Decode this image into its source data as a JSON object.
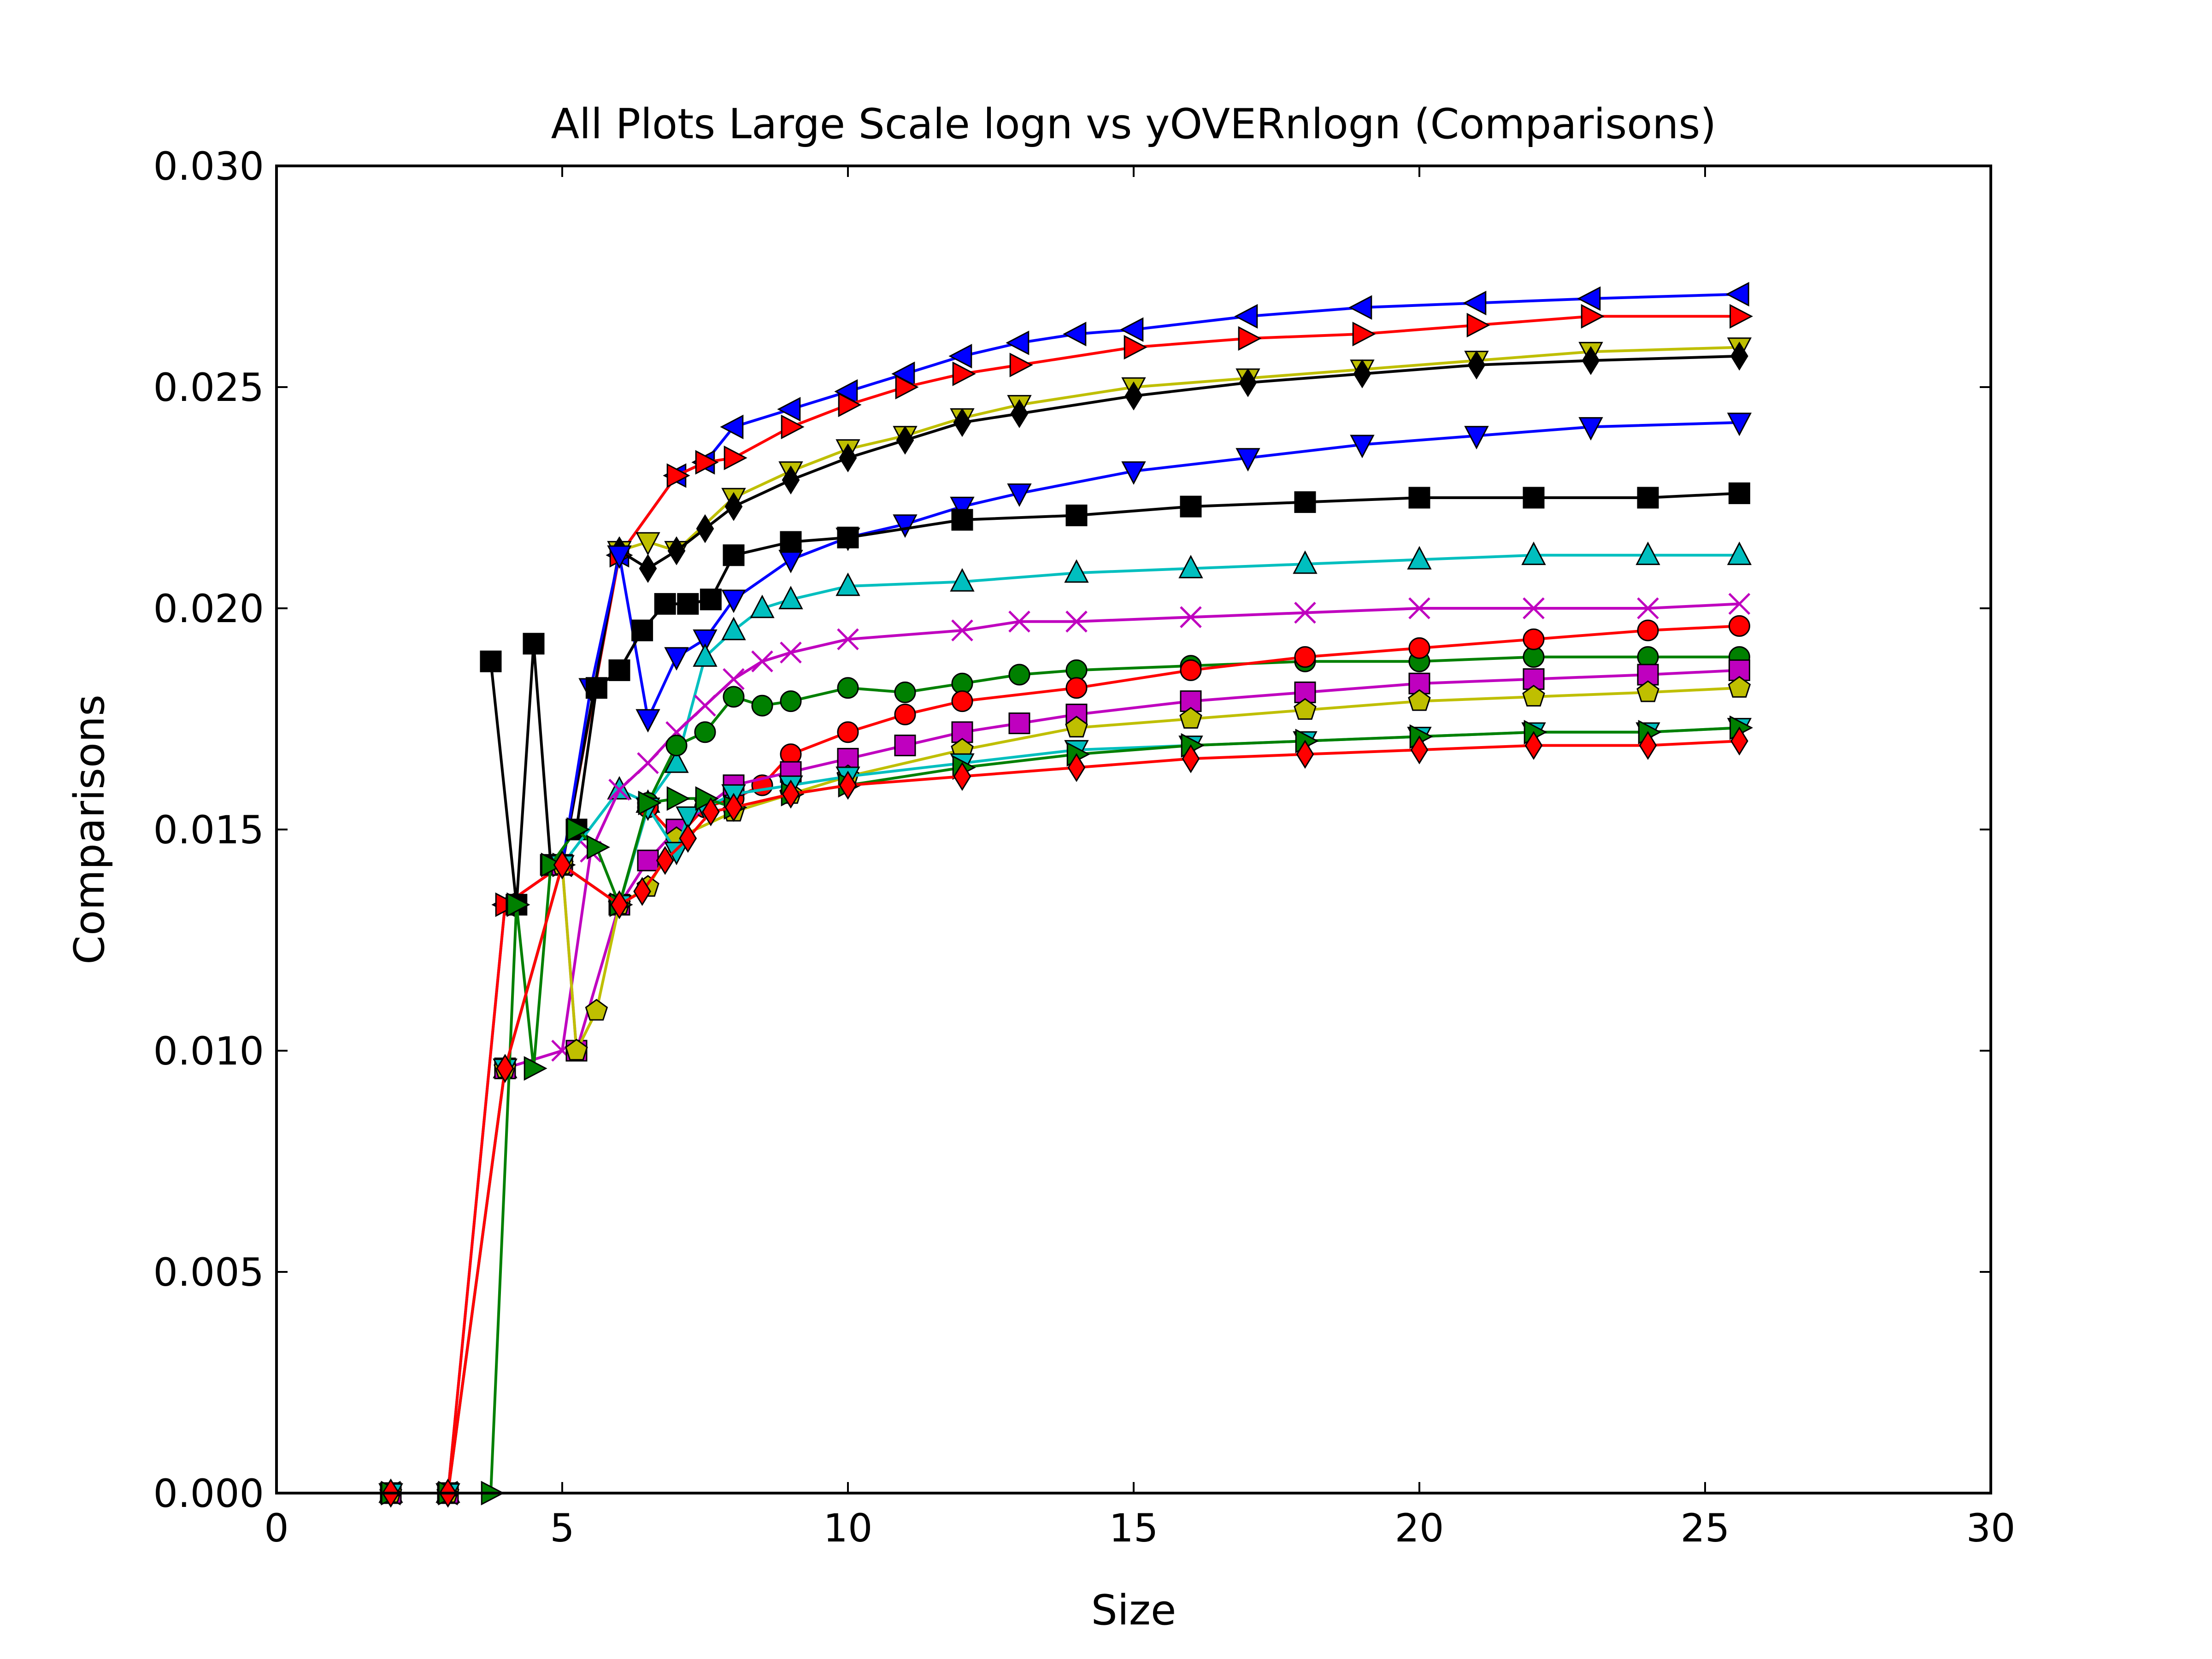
{
  "chart_data": {
    "type": "line",
    "title": "All Plots Large Scale logn vs yOVERnlogn (Comparisons)",
    "xlabel": "Size",
    "ylabel": "Comparisons",
    "xlim": [
      0,
      30
    ],
    "ylim": [
      0,
      0.03
    ],
    "xticks": [
      "0",
      "5",
      "10",
      "15",
      "20",
      "25",
      "30"
    ],
    "yticks": [
      "0.000",
      "0.005",
      "0.010",
      "0.015",
      "0.020",
      "0.025",
      "0.030"
    ],
    "grid": false,
    "legend": "none",
    "series": [
      {
        "color": "#0000ff",
        "marker": "triangle-left",
        "x": [
          2.0,
          3.0,
          4.0,
          5.0,
          6.0,
          7.0,
          7.5,
          8.0,
          9.0,
          10.0,
          11.0,
          12.0,
          13.0,
          14.0,
          15.0,
          17.0,
          19.0,
          21.0,
          23.0,
          25.6
        ],
        "y": [
          0.0,
          0.0,
          0.0133,
          0.0142,
          0.0212,
          0.023,
          0.0233,
          0.0241,
          0.0245,
          0.0249,
          0.0253,
          0.0257,
          0.026,
          0.0262,
          0.0263,
          0.0266,
          0.0268,
          0.0269,
          0.027,
          0.0271
        ]
      },
      {
        "color": "#ff0000",
        "marker": "triangle-right",
        "x": [
          2.0,
          3.0,
          4.0,
          5.0,
          6.0,
          7.0,
          7.5,
          8.0,
          9.0,
          10.0,
          11.0,
          12.0,
          13.0,
          15.0,
          17.0,
          19.0,
          21.0,
          23.0,
          25.6
        ],
        "y": [
          0.0,
          0.0,
          0.0133,
          0.0142,
          0.0212,
          0.023,
          0.0233,
          0.0234,
          0.0241,
          0.0246,
          0.025,
          0.0253,
          0.0255,
          0.0259,
          0.0261,
          0.0262,
          0.0264,
          0.0266,
          0.0266
        ]
      },
      {
        "color": "#bfbf00",
        "marker": "triangle-down",
        "x": [
          2.0,
          3.0,
          4.0,
          5.0,
          6.0,
          6.5,
          7.0,
          8.0,
          9.0,
          10.0,
          11.0,
          12.0,
          13.0,
          15.0,
          17.0,
          19.0,
          21.0,
          23.0,
          25.6
        ],
        "y": [
          0.0,
          0.0,
          0.0096,
          0.0142,
          0.0213,
          0.0215,
          0.0213,
          0.0225,
          0.0231,
          0.0236,
          0.0239,
          0.0243,
          0.0246,
          0.025,
          0.0252,
          0.0254,
          0.0256,
          0.0258,
          0.0259
        ]
      },
      {
        "color": "#000000",
        "marker": "diamond",
        "x": [
          2.0,
          3.0,
          4.0,
          5.0,
          6.0,
          6.5,
          7.0,
          7.5,
          8.0,
          9.0,
          10.0,
          11.0,
          12.0,
          13.0,
          15.0,
          17.0,
          19.0,
          21.0,
          23.0,
          25.6
        ],
        "y": [
          0.0,
          0.0,
          0.0096,
          0.0142,
          0.0213,
          0.0209,
          0.0213,
          0.0218,
          0.0223,
          0.0229,
          0.0234,
          0.0238,
          0.0242,
          0.0244,
          0.0248,
          0.0251,
          0.0253,
          0.0255,
          0.0256,
          0.0257
        ]
      },
      {
        "color": "#0000ff",
        "marker": "triangle-down",
        "x": [
          2.0,
          3.0,
          4.0,
          5.0,
          5.5,
          6.0,
          6.5,
          7.0,
          7.5,
          8.0,
          9.0,
          10.0,
          11.0,
          12.0,
          13.0,
          15.0,
          17.0,
          19.0,
          21.0,
          23.0,
          25.6
        ],
        "y": [
          0.0,
          0.0,
          0.0096,
          0.0142,
          0.0182,
          0.0212,
          0.0175,
          0.0189,
          0.0193,
          0.0202,
          0.0211,
          0.0216,
          0.0219,
          0.0223,
          0.0226,
          0.0231,
          0.0234,
          0.0237,
          0.0239,
          0.0241,
          0.0242
        ]
      },
      {
        "color": "#000000",
        "marker": "square",
        "x": [
          3.75,
          4.2,
          4.5,
          4.8,
          5.25,
          5.6,
          6.0,
          6.4,
          6.8,
          7.2,
          7.6,
          8.0,
          9.0,
          10.0,
          12.0,
          14.0,
          16.0,
          18.0,
          20.0,
          22.0,
          24.0,
          25.6
        ],
        "y": [
          0.0188,
          0.0133,
          0.0192,
          0.0142,
          0.015,
          0.0182,
          0.0186,
          0.0195,
          0.0201,
          0.0201,
          0.0202,
          0.0212,
          0.0215,
          0.0216,
          0.022,
          0.0221,
          0.0223,
          0.0224,
          0.0225,
          0.0225,
          0.0225,
          0.0226
        ]
      },
      {
        "color": "#00bfbf",
        "marker": "triangle-up",
        "x": [
          2.0,
          3.0,
          4.0,
          5.0,
          6.0,
          6.5,
          7.0,
          7.5,
          8.0,
          8.5,
          9.0,
          10.0,
          12.0,
          14.0,
          16.0,
          18.0,
          20.0,
          22.0,
          24.0,
          25.6
        ],
        "y": [
          0.0,
          0.0,
          0.0096,
          0.0142,
          0.0159,
          0.0156,
          0.0165,
          0.0189,
          0.0195,
          0.02,
          0.0202,
          0.0205,
          0.0206,
          0.0208,
          0.0209,
          0.021,
          0.0211,
          0.0212,
          0.0212,
          0.0212
        ]
      },
      {
        "color": "#bf00bf",
        "marker": "x",
        "x": [
          2.0,
          3.0,
          4.0,
          5.0,
          5.5,
          6.0,
          6.5,
          7.0,
          7.5,
          8.0,
          8.5,
          9.0,
          10.0,
          12.0,
          13.0,
          14.0,
          16.0,
          18.0,
          20.0,
          22.0,
          24.0,
          25.6
        ],
        "y": [
          0.0,
          0.0,
          0.0096,
          0.01,
          0.0145,
          0.0159,
          0.0165,
          0.0172,
          0.0178,
          0.0184,
          0.0188,
          0.019,
          0.0193,
          0.0195,
          0.0197,
          0.0197,
          0.0198,
          0.0199,
          0.02,
          0.02,
          0.02,
          0.0201
        ]
      },
      {
        "color": "#008000",
        "marker": "circle",
        "x": [
          2.0,
          3.0,
          4.0,
          5.0,
          6.0,
          6.5,
          7.0,
          7.5,
          8.0,
          8.5,
          9.0,
          10.0,
          11.0,
          12.0,
          13.0,
          14.0,
          16.0,
          18.0,
          20.0,
          22.0,
          24.0,
          25.6
        ],
        "y": [
          0.0,
          0.0,
          0.0096,
          0.0142,
          0.0133,
          0.0156,
          0.0169,
          0.0172,
          0.018,
          0.0178,
          0.0179,
          0.0182,
          0.0181,
          0.0183,
          0.0185,
          0.0186,
          0.0187,
          0.0188,
          0.0188,
          0.0189,
          0.0189,
          0.0189
        ]
      },
      {
        "color": "#ff0000",
        "marker": "circle",
        "x": [
          2.0,
          3.0,
          4.0,
          5.0,
          6.0,
          6.5,
          7.0,
          7.5,
          8.0,
          8.5,
          9.0,
          10.0,
          11.0,
          12.0,
          14.0,
          16.0,
          18.0,
          20.0,
          22.0,
          24.0,
          25.6
        ],
        "y": [
          0.0,
          0.0,
          0.0096,
          0.0142,
          0.0133,
          0.0155,
          0.0148,
          0.0155,
          0.0157,
          0.016,
          0.0167,
          0.0172,
          0.0176,
          0.0179,
          0.0182,
          0.0186,
          0.0189,
          0.0191,
          0.0193,
          0.0195,
          0.0196
        ]
      },
      {
        "color": "#bf00bf",
        "marker": "square",
        "x": [
          2.0,
          3.0,
          4.0,
          5.0,
          5.25,
          6.0,
          6.5,
          7.0,
          8.0,
          9.0,
          10.0,
          11.0,
          12.0,
          13.0,
          14.0,
          16.0,
          18.0,
          20.0,
          22.0,
          24.0,
          25.6
        ],
        "y": [
          0.0,
          0.0,
          0.0096,
          0.0142,
          0.01,
          0.0133,
          0.0143,
          0.015,
          0.016,
          0.0163,
          0.0166,
          0.0169,
          0.0172,
          0.0174,
          0.0176,
          0.0179,
          0.0181,
          0.0183,
          0.0184,
          0.0185,
          0.0186
        ]
      },
      {
        "color": "#bfbf00",
        "marker": "pentagon",
        "x": [
          2.0,
          3.0,
          4.0,
          5.0,
          5.25,
          5.6,
          6.0,
          6.5,
          7.0,
          8.0,
          9.0,
          10.0,
          12.0,
          14.0,
          16.0,
          18.0,
          20.0,
          22.0,
          24.0,
          25.6
        ],
        "y": [
          0.0,
          0.0,
          0.0096,
          0.0142,
          0.01,
          0.0109,
          0.0133,
          0.0137,
          0.0148,
          0.0154,
          0.0158,
          0.0162,
          0.0168,
          0.0173,
          0.0175,
          0.0177,
          0.0179,
          0.018,
          0.0181,
          0.0182
        ]
      },
      {
        "color": "#00bfbf",
        "marker": "triangle-down",
        "x": [
          2.0,
          3.0,
          4.0,
          5.0,
          6.0,
          6.5,
          7.0,
          7.2,
          7.5,
          8.0,
          9.0,
          10.0,
          12.0,
          14.0,
          16.0,
          18.0,
          20.0,
          22.0,
          24.0,
          25.6
        ],
        "y": [
          0.0,
          0.0,
          0.0096,
          0.0142,
          0.0133,
          0.0155,
          0.0145,
          0.0153,
          0.0155,
          0.0158,
          0.016,
          0.0162,
          0.0165,
          0.0168,
          0.0169,
          0.017,
          0.0171,
          0.0172,
          0.0172,
          0.0173
        ]
      },
      {
        "color": "#008000",
        "marker": "triangle-right",
        "x": [
          2.0,
          3.0,
          3.75,
          4.2,
          4.5,
          4.8,
          5.25,
          5.6,
          6.0,
          6.5,
          7.0,
          7.5,
          8.0,
          9.0,
          10.0,
          12.0,
          14.0,
          16.0,
          18.0,
          20.0,
          22.0,
          24.0,
          25.6
        ],
        "y": [
          0.0,
          0.0,
          0.0,
          0.0133,
          0.0096,
          0.0142,
          0.015,
          0.0146,
          0.0133,
          0.0156,
          0.0157,
          0.0157,
          0.0155,
          0.0158,
          0.016,
          0.0164,
          0.0167,
          0.0169,
          0.017,
          0.0171,
          0.0172,
          0.0172,
          0.0173
        ]
      },
      {
        "color": "#ff0000",
        "marker": "diamond",
        "x": [
          2.0,
          3.0,
          4.0,
          5.0,
          6.0,
          6.4,
          6.8,
          7.2,
          7.6,
          8.0,
          9.0,
          10.0,
          12.0,
          14.0,
          16.0,
          18.0,
          20.0,
          22.0,
          24.0,
          25.6
        ],
        "y": [
          0.0,
          0.0,
          0.0096,
          0.0142,
          0.0133,
          0.0136,
          0.0143,
          0.0148,
          0.0154,
          0.0155,
          0.0158,
          0.016,
          0.0162,
          0.0164,
          0.0166,
          0.0167,
          0.0168,
          0.0169,
          0.0169,
          0.017
        ]
      }
    ]
  }
}
